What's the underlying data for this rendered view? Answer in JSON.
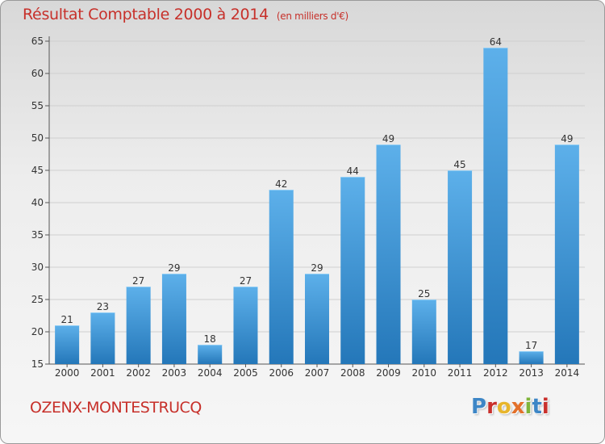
{
  "title": "Résultat Comptable 2000 à 2014",
  "subtitle": "(en milliers d'€)",
  "commune": "OZENX-MONTESTRUCQ",
  "brand": "Proxiti",
  "colors": {
    "title": "#c7302a",
    "bar_top": "#5db0ea",
    "bar_bottom": "#2477b9",
    "grid": "#cfcfcf"
  },
  "chart_data": {
    "type": "bar",
    "categories": [
      "2000",
      "2001",
      "2002",
      "2003",
      "2004",
      "2005",
      "2006",
      "2007",
      "2008",
      "2009",
      "2010",
      "2011",
      "2012",
      "2013",
      "2014"
    ],
    "values": [
      21,
      23,
      27,
      29,
      18,
      27,
      42,
      29,
      44,
      49,
      25,
      45,
      64,
      17,
      49
    ],
    "ylim": [
      15,
      65
    ],
    "yticks": [
      15,
      20,
      25,
      30,
      35,
      40,
      45,
      50,
      55,
      60,
      65
    ],
    "grid": true,
    "data_labels": true
  }
}
